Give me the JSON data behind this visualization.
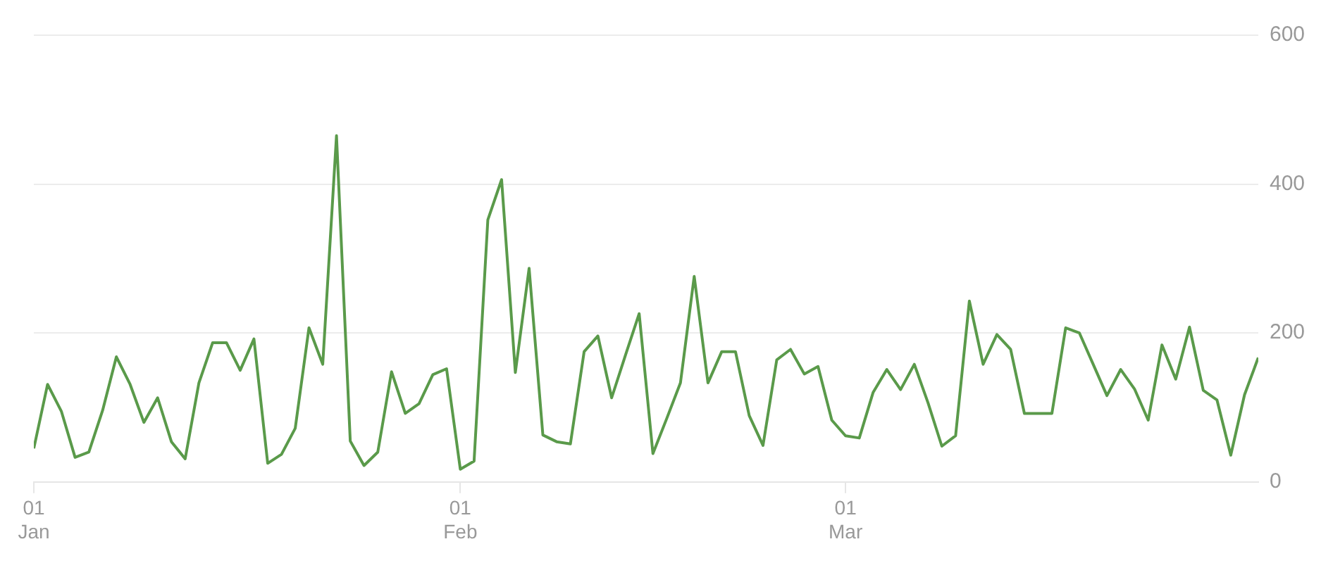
{
  "chart_data": {
    "type": "line",
    "x": [
      "--01-01",
      "--01-02",
      "--01-03",
      "--01-04",
      "--01-05",
      "--01-06",
      "--01-07",
      "--01-08",
      "--01-09",
      "--01-10",
      "--01-11",
      "--01-12",
      "--01-13",
      "--01-14",
      "--01-15",
      "--01-16",
      "--01-17",
      "--01-18",
      "--01-19",
      "--01-20",
      "--01-21",
      "--01-22",
      "--01-23",
      "--01-24",
      "--01-25",
      "--01-26",
      "--01-27",
      "--01-28",
      "--01-29",
      "--01-30",
      "--01-31",
      "--02-01",
      "--02-02",
      "--02-03",
      "--02-04",
      "--02-05",
      "--02-06",
      "--02-07",
      "--02-08",
      "--02-09",
      "--02-10",
      "--02-11",
      "--02-12",
      "--02-13",
      "--02-14",
      "--02-15",
      "--02-16",
      "--02-17",
      "--02-18",
      "--02-19",
      "--02-20",
      "--02-21",
      "--02-22",
      "--02-23",
      "--02-24",
      "--02-25",
      "--02-26",
      "--02-27",
      "--02-28",
      "--03-01",
      "--03-02",
      "--03-03",
      "--03-04",
      "--03-05",
      "--03-06",
      "--03-07",
      "--03-08",
      "--03-09",
      "--03-10",
      "--03-11",
      "--03-12",
      "--03-13",
      "--03-14",
      "--03-15",
      "--03-16",
      "--03-17",
      "--03-18",
      "--03-19",
      "--03-20",
      "--03-21",
      "--03-22",
      "--03-23",
      "--03-24",
      "--03-25",
      "--03-26",
      "--03-27",
      "--03-28",
      "--03-29",
      "--03-30",
      "--03-31"
    ],
    "series": [
      {
        "color": "#5a9a4a",
        "values": [
          45,
          131,
          95,
          33,
          40,
          96,
          168,
          131,
          80,
          113,
          54,
          31,
          133,
          187,
          187,
          150,
          192,
          25,
          37,
          72,
          207,
          158,
          465,
          55,
          22,
          40,
          148,
          92,
          105,
          144,
          152,
          17,
          28,
          352,
          406,
          147,
          287,
          63,
          54,
          51,
          175,
          196,
          113,
          170,
          226,
          38,
          85,
          133,
          276,
          133,
          175,
          175,
          89,
          49,
          164,
          178,
          145,
          155,
          83,
          62,
          59,
          120,
          151,
          124,
          158,
          106,
          48,
          62,
          243,
          158,
          198,
          178,
          92,
          92,
          92,
          207,
          200,
          158,
          116,
          151,
          125,
          83,
          184,
          138,
          208,
          123,
          110,
          36,
          117,
          167
        ]
      }
    ],
    "xlim": [
      "--01-01",
      "--03-31"
    ],
    "xticks": [
      {
        "value": "--01-01",
        "label": "01 Jan"
      },
      {
        "value": "--02-01",
        "label": "01 Feb"
      },
      {
        "value": "--03-01",
        "label": "01 Mar"
      }
    ],
    "ylim": [
      0,
      600
    ],
    "yticks": [
      0,
      200,
      400,
      600
    ],
    "grid": "y",
    "legend": false,
    "marker": "none",
    "line_style": "solid"
  }
}
